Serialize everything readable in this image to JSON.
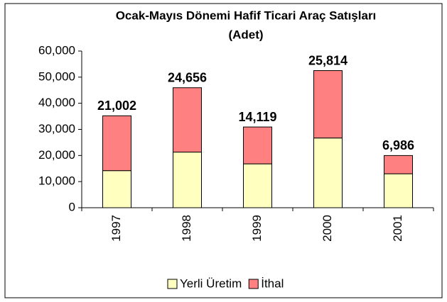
{
  "chart_data": {
    "type": "stacked_bar",
    "title": "Ocak-Mayıs Dönemi Hafif Ticari Araç Satışları",
    "subtitle": "(Adet)",
    "categories": [
      "1997",
      "1998",
      "1999",
      "2000",
      "2001"
    ],
    "series": [
      {
        "name": "Yerli Üretim",
        "color": "#ffffc0",
        "values": [
          14200,
          21300,
          16800,
          26700,
          13000
        ]
      },
      {
        "name": "İthal",
        "color": "#ff8080",
        "values": [
          21002,
          24656,
          14119,
          25814,
          6986
        ],
        "value_labels": [
          "21,002",
          "24,656",
          "14,119",
          "25,814",
          "6,986"
        ]
      }
    ],
    "ylim": [
      0,
      60000
    ],
    "yticks": [
      0,
      {
        "value": 10000,
        "label": "10,000"
      },
      {
        "value": 20000,
        "label": "20,000"
      },
      {
        "value": 30000,
        "label": "30,000"
      },
      {
        "value": 40000,
        "label": "40,000"
      },
      {
        "value": 50000,
        "label": "50,000"
      },
      {
        "value": 60000,
        "label": "60,000"
      }
    ],
    "legend": "bottom"
  }
}
